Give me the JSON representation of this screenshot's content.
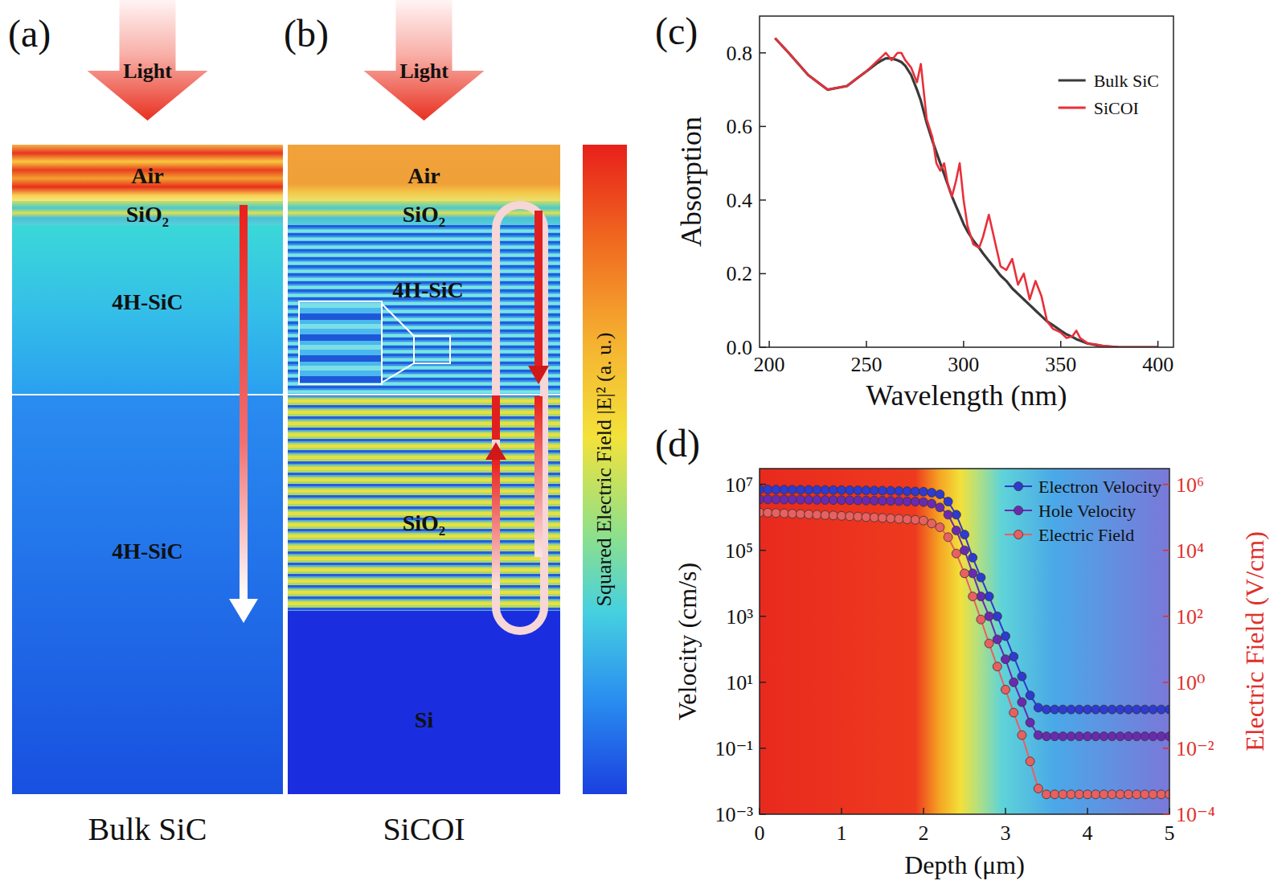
{
  "diagram": {
    "panels": [
      {
        "panel_label": "(a)",
        "light": "Light",
        "layers": [
          "Air",
          "SiO₂",
          "4H-SiC",
          "4H-SiC"
        ],
        "caption": "Bulk SiC"
      },
      {
        "panel_label": "(b)",
        "light": "Light",
        "layers": [
          "Air",
          "SiO₂",
          "4H-SiC",
          "SiO₂",
          "Si"
        ],
        "caption": "SiCOI"
      }
    ],
    "colorbar": {
      "label": "Squared Electric Field |E|² (a. u.)"
    }
  },
  "chart_data": [
    {
      "type": "line",
      "panel_label": "(c)",
      "x_label": "Wavelength (nm)",
      "y_label": "Absorption",
      "x": [
        203,
        210,
        215,
        220,
        230,
        240,
        245,
        250,
        255,
        258,
        260,
        263,
        266,
        268,
        270,
        273,
        276,
        278,
        281,
        284,
        286,
        288,
        290,
        292,
        294,
        296,
        298,
        300,
        302,
        305,
        308,
        310,
        313,
        316,
        319,
        322,
        325,
        328,
        331,
        334,
        337,
        340,
        343,
        346,
        350,
        353,
        356,
        358,
        360,
        364,
        368,
        372,
        380,
        390,
        400
      ],
      "series": [
        {
          "name": "Bulk SiC",
          "color": "#3a3a3a",
          "values": [
            0.84,
            0.8,
            0.77,
            0.74,
            0.7,
            0.71,
            0.73,
            0.75,
            0.77,
            0.78,
            0.785,
            0.785,
            0.78,
            0.775,
            0.765,
            0.74,
            0.7,
            0.67,
            0.61,
            0.56,
            0.53,
            0.5,
            0.47,
            0.44,
            0.41,
            0.385,
            0.36,
            0.335,
            0.315,
            0.29,
            0.27,
            0.255,
            0.235,
            0.215,
            0.195,
            0.18,
            0.16,
            0.145,
            0.13,
            0.115,
            0.1,
            0.085,
            0.07,
            0.06,
            0.045,
            0.035,
            0.028,
            0.022,
            0.018,
            0.01,
            0.006,
            0.003,
            0,
            0,
            0
          ]
        },
        {
          "name": "SiCOI",
          "color": "#e8303a",
          "values": [
            0.84,
            0.8,
            0.77,
            0.74,
            0.7,
            0.71,
            0.73,
            0.75,
            0.775,
            0.79,
            0.8,
            0.78,
            0.8,
            0.8,
            0.78,
            0.76,
            0.72,
            0.77,
            0.62,
            0.57,
            0.5,
            0.48,
            0.5,
            0.44,
            0.41,
            0.45,
            0.5,
            0.4,
            0.33,
            0.28,
            0.27,
            0.3,
            0.36,
            0.29,
            0.22,
            0.21,
            0.24,
            0.17,
            0.2,
            0.13,
            0.18,
            0.14,
            0.07,
            0.05,
            0.04,
            0.025,
            0.03,
            0.045,
            0.025,
            0.01,
            0.008,
            0.003,
            0,
            0,
            0
          ]
        }
      ],
      "xlim": [
        195,
        408
      ],
      "ylim": [
        0,
        0.9
      ],
      "xticks": [
        200,
        250,
        300,
        350,
        400
      ],
      "yticks": [
        {
          "value": 0,
          "label": "0.0"
        },
        {
          "value": 0.2,
          "label": "0.2"
        },
        {
          "value": 0.4,
          "label": "0.4"
        },
        {
          "value": 0.6,
          "label": "0.6"
        },
        {
          "value": 0.8,
          "label": "0.8"
        }
      ],
      "legend": "upper right"
    },
    {
      "type": "line",
      "panel_label": "(d)",
      "x_label": "Depth (μm)",
      "y_label": "Velocity (cm/s)",
      "y2_label": "Electric Field (V/cm)",
      "log": "y",
      "x": [
        0,
        0.1,
        0.2,
        0.3,
        0.4,
        0.5,
        0.6,
        0.7,
        0.8,
        0.9,
        1,
        1.1,
        1.2,
        1.3,
        1.4,
        1.5,
        1.6,
        1.7,
        1.8,
        1.9,
        2,
        2.1,
        2.2,
        2.3,
        2.4,
        2.5,
        2.6,
        2.7,
        2.8,
        2.9,
        3,
        3.1,
        3.2,
        3.3,
        3.4,
        3.5,
        3.6,
        3.7,
        3.8,
        3.9,
        4,
        4.1,
        4.2,
        4.3,
        4.4,
        4.5,
        4.6,
        4.7,
        4.8,
        4.9,
        5
      ],
      "series": [
        {
          "name": "Electron Velocity",
          "color": "#2e3ad0",
          "marker": "circle",
          "values": [
            7000000,
            7000000,
            6950000,
            6900000,
            6900000,
            6850000,
            6800000,
            6800000,
            6750000,
            6700000,
            6700000,
            6650000,
            6600000,
            6550000,
            6500000,
            6450000,
            6400000,
            6300000,
            6200000,
            6100000,
            6000000,
            5600000,
            5000000,
            3000000,
            1200000,
            300000,
            60000,
            15000,
            4000,
            1000,
            250,
            60,
            15,
            4,
            1.7,
            1.5,
            1.5,
            1.5,
            1.5,
            1.5,
            1.5,
            1.5,
            1.5,
            1.5,
            1.5,
            1.5,
            1.5,
            1.5,
            1.5,
            1.5,
            1.5
          ]
        },
        {
          "name": "Hole Velocity",
          "color": "#6a2ab0",
          "marker": "circle",
          "values": [
            3500000,
            3500000,
            3480000,
            3460000,
            3440000,
            3420000,
            3400000,
            3380000,
            3360000,
            3340000,
            3320000,
            3300000,
            3270000,
            3240000,
            3210000,
            3180000,
            3150000,
            3100000,
            3050000,
            3000000,
            2900000,
            2600000,
            2000000,
            1200000,
            400000,
            100000,
            20000,
            4000,
            1000,
            200,
            50,
            10,
            2.5,
            0.6,
            0.25,
            0.23,
            0.23,
            0.23,
            0.23,
            0.23,
            0.23,
            0.23,
            0.23,
            0.23,
            0.23,
            0.23,
            0.23,
            0.23,
            0.23,
            0.23,
            0.23
          ]
        },
        {
          "name": "Electric Field",
          "color": "#e86060",
          "marker": "circle",
          "axis": "y2",
          "values": [
            140000,
            138000,
            135000,
            132000,
            129000,
            126000,
            123000,
            120000,
            117000,
            114000,
            111000,
            108000,
            105000,
            102000,
            99000,
            96000,
            93000,
            90000,
            87000,
            84000,
            80000,
            65000,
            50000,
            25000,
            8000,
            2000,
            400,
            80,
            15,
            3,
            0.6,
            0.12,
            0.025,
            0.004,
            0.0006,
            0.0004,
            0.0004,
            0.0004,
            0.0004,
            0.0004,
            0.0004,
            0.0004,
            0.0004,
            0.0004,
            0.0004,
            0.0004,
            0.0004,
            0.0004,
            0.0004,
            0.0004,
            0.0004
          ]
        }
      ],
      "xlim": [
        0,
        5
      ],
      "ylim": [
        0.001,
        30000000
      ],
      "y2lim": [
        0.0001,
        3000000
      ],
      "xticks": [
        0,
        1,
        2,
        3,
        4,
        5
      ],
      "yticks": [
        {
          "value": 0.001,
          "label": "10⁻³"
        },
        {
          "value": 0.1,
          "label": "10⁻¹"
        },
        {
          "value": 10,
          "label": "10¹"
        },
        {
          "value": 1000,
          "label": "10³"
        },
        {
          "value": 100000,
          "label": "10⁵"
        },
        {
          "value": 10000000,
          "label": "10⁷"
        }
      ],
      "y2ticks": [
        {
          "value": 0.0001,
          "label": "10⁻⁴"
        },
        {
          "value": 0.01,
          "label": "10⁻²"
        },
        {
          "value": 1,
          "label": "10⁰"
        },
        {
          "value": 100,
          "label": "10²"
        },
        {
          "value": 10000,
          "label": "10⁴"
        },
        {
          "value": 1000000,
          "label": "10⁶"
        }
      ],
      "legend": "upper right"
    }
  ]
}
